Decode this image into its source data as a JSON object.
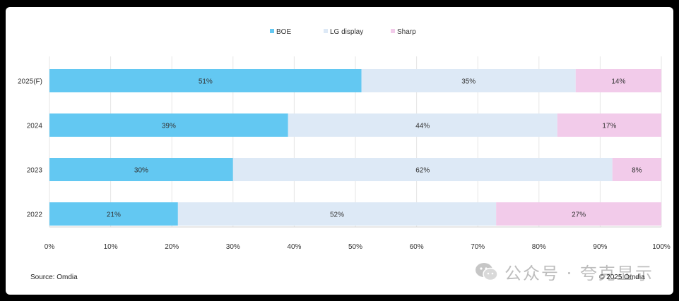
{
  "chart_data": {
    "type": "bar",
    "orientation": "horizontal",
    "stacked": true,
    "percent": true,
    "categories": [
      "2025(F)",
      "2024",
      "2023",
      "2022"
    ],
    "series": [
      {
        "name": "BOE",
        "color": "#63c8f2",
        "values": [
          51,
          39,
          30,
          21
        ],
        "labels": [
          "51%",
          "39%",
          "30%",
          "21%"
        ]
      },
      {
        "name": "LG display",
        "color": "#dde9f6",
        "values": [
          35,
          44,
          62,
          52
        ],
        "labels": [
          "35%",
          "44%",
          "62%",
          "52%"
        ]
      },
      {
        "name": "Sharp",
        "color": "#f2cbea",
        "values": [
          14,
          17,
          8,
          27
        ],
        "labels": [
          "14%",
          "17%",
          "8%",
          "27%"
        ]
      }
    ],
    "xlim": [
      0,
      100
    ],
    "xticks": [
      "0%",
      "10%",
      "20%",
      "30%",
      "40%",
      "50%",
      "60%",
      "70%",
      "80%",
      "90%",
      "100%"
    ],
    "grid": true,
    "legend_position": "top-center"
  },
  "footer": {
    "source": "Source: Omdia",
    "copyright": "© 2025 Omdia"
  },
  "watermark": {
    "text": "公众号 · 夸克显示",
    "icon": "wechat-icon"
  }
}
